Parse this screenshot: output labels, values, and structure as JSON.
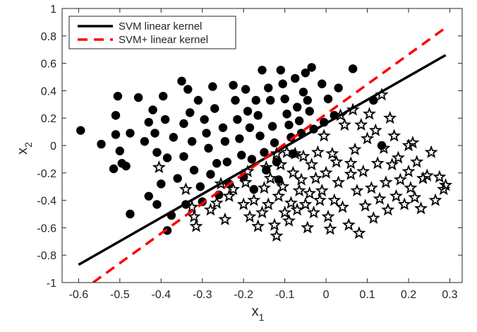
{
  "chart_data": {
    "type": "scatter",
    "xlabel": "x",
    "xlabel_sub": "1",
    "ylabel": "x",
    "ylabel_sub": "2",
    "xlim": [
      -0.64,
      0.33
    ],
    "ylim": [
      -1,
      1
    ],
    "xticks": [
      -0.6,
      -0.5,
      -0.4,
      -0.3,
      -0.2,
      -0.1,
      0,
      0.1,
      0.2,
      0.3
    ],
    "xtick_labels": [
      "-0.6",
      "-0.5",
      "-0.4",
      "-0.3",
      "-0.2",
      "-0.1",
      "0",
      "0.1",
      "0.2",
      "0.3"
    ],
    "yticks": [
      -1,
      -0.8,
      -0.6,
      -0.4,
      -0.2,
      0,
      0.2,
      0.4,
      0.6,
      0.8,
      1
    ],
    "ytick_labels": [
      "-1",
      "-0.8",
      "-0.6",
      "-0.4",
      "-0.2",
      "0",
      "0.2",
      "0.4",
      "0.6",
      "0.8",
      "1"
    ],
    "grid": false,
    "legend_position": "top-left",
    "series": [
      {
        "kind": "line",
        "name": "SVM linear kernel",
        "color": "#000000",
        "style": "solid",
        "x": [
          -0.6,
          0.29
        ],
        "y": [
          -0.87,
          0.66
        ]
      },
      {
        "kind": "line",
        "name": "SVM+ linear kernel",
        "color": "#ff0000",
        "style": "dashed",
        "x": [
          -0.565,
          0.29
        ],
        "y": [
          -1.0,
          0.86
        ]
      },
      {
        "kind": "points",
        "marker": "circle",
        "color": "#000000",
        "points": [
          [
            -0.595,
            0.11
          ],
          [
            -0.545,
            0.01
          ],
          [
            -0.505,
            0.36
          ],
          [
            -0.51,
            0.22
          ],
          [
            -0.51,
            0.08
          ],
          [
            -0.5,
            -0.04
          ],
          [
            -0.515,
            -0.17
          ],
          [
            -0.495,
            -0.13
          ],
          [
            -0.485,
            -0.15
          ],
          [
            -0.475,
            0.09
          ],
          [
            -0.475,
            -0.5
          ],
          [
            -0.455,
            0.35
          ],
          [
            -0.44,
            0.03
          ],
          [
            -0.43,
            0.17
          ],
          [
            -0.43,
            -0.37
          ],
          [
            -0.42,
            0.26
          ],
          [
            -0.415,
            0.09
          ],
          [
            -0.41,
            -0.05
          ],
          [
            -0.41,
            -0.43
          ],
          [
            -0.4,
            -0.28
          ],
          [
            -0.395,
            0.36
          ],
          [
            -0.39,
            0.19
          ],
          [
            -0.385,
            -0.09
          ],
          [
            -0.385,
            -0.62
          ],
          [
            -0.375,
            -0.51
          ],
          [
            -0.37,
            0.06
          ],
          [
            -0.36,
            -0.24
          ],
          [
            -0.35,
            0.47
          ],
          [
            -0.345,
            0.16
          ],
          [
            -0.345,
            -0.08
          ],
          [
            -0.34,
            -0.43
          ],
          [
            -0.335,
            0.41
          ],
          [
            -0.33,
            0.24
          ],
          [
            -0.325,
            0.03
          ],
          [
            -0.32,
            -0.18
          ],
          [
            -0.31,
            0.33
          ],
          [
            -0.305,
            -0.3
          ],
          [
            -0.3,
            -0.41
          ],
          [
            -0.295,
            0.19
          ],
          [
            -0.29,
            0.09
          ],
          [
            -0.285,
            -0.02
          ],
          [
            -0.28,
            -0.21
          ],
          [
            -0.275,
            0.43
          ],
          [
            -0.27,
            0.27
          ],
          [
            -0.265,
            -0.13
          ],
          [
            -0.26,
            -0.36
          ],
          [
            -0.25,
            0.13
          ],
          [
            -0.245,
            0.03
          ],
          [
            -0.24,
            -0.12
          ],
          [
            -0.235,
            -0.28
          ],
          [
            -0.225,
            0.44
          ],
          [
            -0.22,
            0.33
          ],
          [
            -0.215,
            0.19
          ],
          [
            -0.21,
            0.05
          ],
          [
            -0.205,
            -0.07
          ],
          [
            -0.2,
            -0.23
          ],
          [
            -0.195,
            0.41
          ],
          [
            -0.19,
            0.25
          ],
          [
            -0.185,
            0.13
          ],
          [
            -0.18,
            -0.1
          ],
          [
            -0.175,
            -0.32
          ],
          [
            -0.17,
            0.33
          ],
          [
            -0.165,
            0.22
          ],
          [
            -0.16,
            0.07
          ],
          [
            -0.155,
            0.55
          ],
          [
            -0.15,
            -0.05
          ],
          [
            -0.145,
            -0.18
          ],
          [
            -0.14,
            0.42
          ],
          [
            -0.135,
            0.33
          ],
          [
            -0.13,
            0.14
          ],
          [
            -0.125,
            0.02
          ],
          [
            -0.12,
            -0.12
          ],
          [
            -0.115,
            -0.25
          ],
          [
            -0.11,
            0.55
          ],
          [
            -0.105,
            0.45
          ],
          [
            -0.1,
            0.34
          ],
          [
            -0.095,
            0.23
          ],
          [
            -0.09,
            0.15
          ],
          [
            -0.085,
            0.06
          ],
          [
            -0.08,
            -0.06
          ],
          [
            -0.075,
            0.49
          ],
          [
            -0.07,
            0.28
          ],
          [
            -0.065,
            0.18
          ],
          [
            -0.06,
            0.09
          ],
          [
            -0.055,
            0.39
          ],
          [
            -0.05,
            0.53
          ],
          [
            -0.045,
            0.33
          ],
          [
            -0.04,
            0.25
          ],
          [
            -0.035,
            0.57
          ],
          [
            -0.03,
            0.12
          ],
          [
            -0.01,
            0.45
          ],
          [
            -0.005,
            0.17
          ],
          [
            0.005,
            0.34
          ],
          [
            0.02,
            0.22
          ],
          [
            0.03,
            0.42
          ],
          [
            0.065,
            0.56
          ],
          [
            0.135,
            0.0
          ],
          [
            0.115,
            0.33
          ]
        ]
      },
      {
        "kind": "points",
        "marker": "star",
        "color": "#000000",
        "points": [
          [
            -0.405,
            -0.16
          ],
          [
            -0.34,
            -0.32
          ],
          [
            -0.325,
            -0.45
          ],
          [
            -0.32,
            -0.52
          ],
          [
            -0.315,
            -0.59
          ],
          [
            -0.28,
            -0.47
          ],
          [
            -0.265,
            -0.42
          ],
          [
            -0.255,
            -0.28
          ],
          [
            -0.245,
            -0.54
          ],
          [
            -0.235,
            -0.37
          ],
          [
            -0.225,
            -0.32
          ],
          [
            -0.2,
            -0.43
          ],
          [
            -0.195,
            -0.27
          ],
          [
            -0.19,
            -0.19
          ],
          [
            -0.185,
            -0.52
          ],
          [
            -0.175,
            -0.4
          ],
          [
            -0.165,
            -0.59
          ],
          [
            -0.155,
            -0.49
          ],
          [
            -0.15,
            -0.31
          ],
          [
            -0.145,
            -0.16
          ],
          [
            -0.14,
            -0.43
          ],
          [
            -0.135,
            -0.24
          ],
          [
            -0.125,
            -0.58
          ],
          [
            -0.12,
            -0.66
          ],
          [
            -0.115,
            -0.37
          ],
          [
            -0.11,
            -0.14
          ],
          [
            -0.105,
            -0.3
          ],
          [
            -0.1,
            -0.49
          ],
          [
            -0.095,
            -0.05
          ],
          [
            -0.09,
            -0.55
          ],
          [
            -0.085,
            -0.42
          ],
          [
            -0.08,
            -0.2
          ],
          [
            -0.075,
            -0.06
          ],
          [
            -0.07,
            -0.47
          ],
          [
            -0.065,
            -0.33
          ],
          [
            -0.06,
            -0.25
          ],
          [
            -0.055,
            -0.08
          ],
          [
            -0.05,
            -0.43
          ],
          [
            -0.045,
            -0.6
          ],
          [
            -0.04,
            -0.35
          ],
          [
            -0.035,
            -0.14
          ],
          [
            -0.03,
            -0.49
          ],
          [
            -0.025,
            -0.24
          ],
          [
            -0.02,
            -0.05
          ],
          [
            -0.015,
            -0.4
          ],
          [
            -0.01,
            -0.33
          ],
          [
            -0.005,
            0.07
          ],
          [
            0.0,
            -0.2
          ],
          [
            0.005,
            -0.52
          ],
          [
            0.01,
            -0.61
          ],
          [
            0.015,
            -0.06
          ],
          [
            0.02,
            -0.4
          ],
          [
            0.025,
            -0.12
          ],
          [
            0.03,
            -0.27
          ],
          [
            0.035,
            0.22
          ],
          [
            0.04,
            -0.45
          ],
          [
            0.045,
            0.15
          ],
          [
            0.055,
            -0.58
          ],
          [
            0.06,
            -0.21
          ],
          [
            0.065,
            0.26
          ],
          [
            0.07,
            -0.03
          ],
          [
            0.075,
            -0.33
          ],
          [
            0.08,
            -0.64
          ],
          [
            0.085,
            0.15
          ],
          [
            0.09,
            -0.19
          ],
          [
            0.095,
            -0.44
          ],
          [
            0.1,
            0.05
          ],
          [
            0.105,
            0.23
          ],
          [
            0.11,
            -0.31
          ],
          [
            0.115,
            -0.53
          ],
          [
            0.12,
            0.11
          ],
          [
            0.125,
            -0.13
          ],
          [
            0.13,
            -0.39
          ],
          [
            0.135,
            0.37
          ],
          [
            0.14,
            -0.02
          ],
          [
            0.145,
            -0.27
          ],
          [
            0.15,
            -0.47
          ],
          [
            0.155,
            0.2
          ],
          [
            0.16,
            -0.14
          ],
          [
            0.165,
            0.07
          ],
          [
            0.17,
            -0.37
          ],
          [
            0.175,
            -0.09
          ],
          [
            0.18,
            -0.25
          ],
          [
            0.19,
            -0.43
          ],
          [
            0.2,
            -0.19
          ],
          [
            0.205,
            -0.31
          ],
          [
            0.21,
            0.02
          ],
          [
            0.215,
            -0.38
          ],
          [
            0.22,
            -0.12
          ],
          [
            0.23,
            -0.46
          ],
          [
            0.235,
            -0.24
          ],
          [
            0.245,
            -0.22
          ],
          [
            0.255,
            -0.05
          ],
          [
            0.265,
            -0.4
          ],
          [
            0.275,
            -0.23
          ],
          [
            0.285,
            -0.32
          ],
          [
            0.29,
            -0.29
          ],
          [
            0.2,
            0.0
          ],
          [
            0.06,
            -0.13
          ],
          [
            -0.12,
            -0.06
          ]
        ]
      }
    ]
  }
}
